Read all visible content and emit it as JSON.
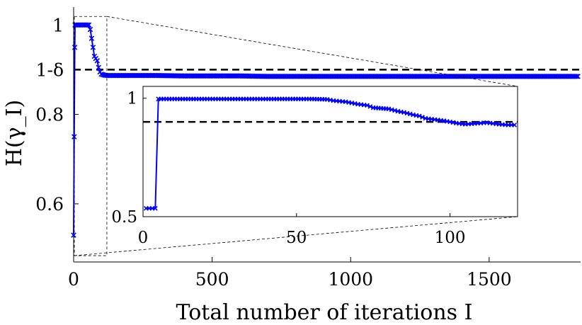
{
  "chart_data": [
    {
      "type": "line",
      "panel": "main",
      "xlabel": "Total number of iterations I",
      "ylabel": "H(γ_I)",
      "xlim": [
        0,
        1830
      ],
      "ylim": [
        0.47,
        1.04
      ],
      "xticks": [
        {
          "value": 0,
          "label": "0"
        },
        {
          "value": 500,
          "label": "500"
        },
        {
          "value": 1000,
          "label": "1000"
        },
        {
          "value": 1500,
          "label": "1500"
        }
      ],
      "yticks": [
        {
          "value": 0.6,
          "label": "0.6"
        },
        {
          "value": 0.8,
          "label": "0.8"
        },
        {
          "value": 0.9,
          "label": "1-δ"
        },
        {
          "value": 1.0,
          "label": "1"
        }
      ],
      "threshold": {
        "value": 0.9,
        "style": "dashed",
        "color": "#000000"
      },
      "zoom_region": {
        "x": [
          0,
          120
        ],
        "y": [
          0.5,
          1.0
        ]
      },
      "series": [
        {
          "color": "#0000ff",
          "marker": "x",
          "points": [
            [
              0,
              0.53
            ],
            [
              2,
              0.75
            ],
            [
              4,
              0.95
            ],
            [
              5,
              1.0
            ],
            [
              20,
              1.0
            ],
            [
              40,
              1.0
            ],
            [
              55,
              1.0
            ],
            [
              60,
              0.99
            ],
            [
              65,
              0.97
            ],
            [
              70,
              0.95
            ],
            [
              75,
              0.93
            ],
            [
              80,
              0.925
            ],
            [
              85,
              0.92
            ],
            [
              90,
              0.905
            ],
            [
              95,
              0.895
            ],
            [
              100,
              0.89
            ],
            [
              110,
              0.888
            ],
            [
              120,
              0.887
            ],
            [
              200,
              0.887
            ],
            [
              300,
              0.887
            ],
            [
              400,
              0.886
            ],
            [
              500,
              0.886
            ],
            [
              600,
              0.886
            ],
            [
              700,
              0.885
            ],
            [
              800,
              0.885
            ],
            [
              900,
              0.885
            ],
            [
              1000,
              0.885
            ],
            [
              1100,
              0.885
            ],
            [
              1200,
              0.885
            ],
            [
              1300,
              0.885
            ],
            [
              1400,
              0.885
            ],
            [
              1500,
              0.885
            ],
            [
              1600,
              0.885
            ],
            [
              1700,
              0.885
            ],
            [
              1820,
              0.885
            ]
          ]
        }
      ]
    },
    {
      "type": "line",
      "panel": "inset",
      "xlim": [
        0,
        122
      ],
      "ylim": [
        0.5,
        1.05
      ],
      "xticks": [
        {
          "value": 0,
          "label": "0"
        },
        {
          "value": 50,
          "label": "50"
        },
        {
          "value": 100,
          "label": "100"
        }
      ],
      "yticks": [
        {
          "value": 0.5,
          "label": "0.5"
        },
        {
          "value": 1.0,
          "label": "1"
        }
      ],
      "threshold": {
        "value": 0.9,
        "style": "dashed",
        "color": "#000000"
      },
      "series": [
        {
          "color": "#0000ff",
          "marker": "x",
          "points": [
            [
              1,
              0.535
            ],
            [
              3,
              0.535
            ],
            [
              4,
              0.535
            ],
            [
              5,
              0.997
            ],
            [
              20,
              0.997
            ],
            [
              40,
              0.997
            ],
            [
              55,
              0.997
            ],
            [
              60,
              0.995
            ],
            [
              62,
              0.99
            ],
            [
              66,
              0.985
            ],
            [
              70,
              0.975
            ],
            [
              73,
              0.97
            ],
            [
              75,
              0.96
            ],
            [
              80,
              0.955
            ],
            [
              83,
              0.945
            ],
            [
              85,
              0.94
            ],
            [
              88,
              0.93
            ],
            [
              90,
              0.925
            ],
            [
              92,
              0.915
            ],
            [
              95,
              0.91
            ],
            [
              98,
              0.905
            ],
            [
              100,
              0.9
            ],
            [
              102,
              0.895
            ],
            [
              105,
              0.89
            ],
            [
              108,
              0.893
            ],
            [
              112,
              0.897
            ],
            [
              116,
              0.89
            ],
            [
              119,
              0.887
            ],
            [
              121,
              0.887
            ]
          ]
        }
      ]
    }
  ]
}
